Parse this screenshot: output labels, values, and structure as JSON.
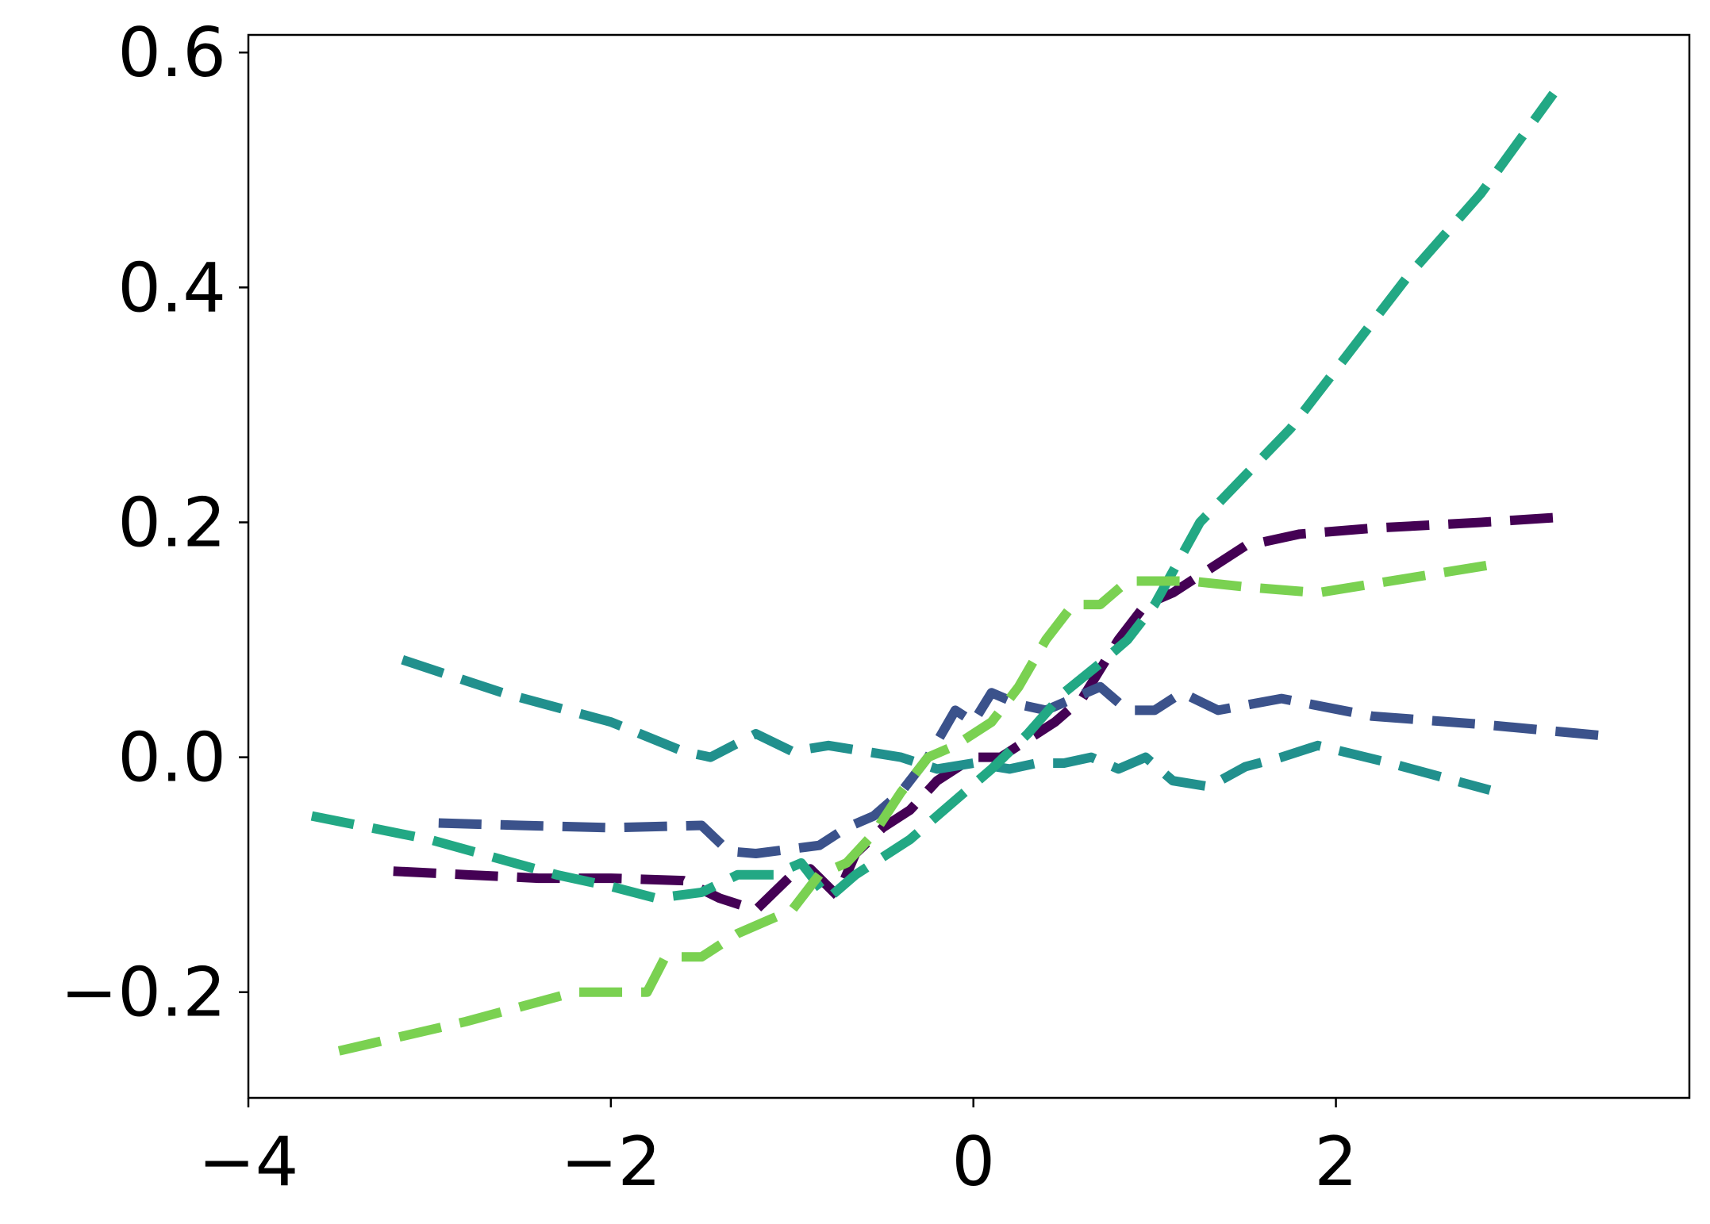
{
  "chart_data": {
    "type": "line",
    "title": "",
    "xlabel": "",
    "ylabel": "",
    "xlim": [
      -4.0,
      3.95
    ],
    "ylim": [
      -0.29,
      0.615
    ],
    "xticks": [
      -4,
      -2,
      0,
      2
    ],
    "xtick_labels": [
      "−4",
      "−2",
      "0",
      "2"
    ],
    "yticks": [
      -0.2,
      0.0,
      0.2,
      0.4,
      0.6
    ],
    "ytick_labels": [
      "−0.2",
      "0.0",
      "0.2",
      "0.4",
      "0.6"
    ],
    "grid": false,
    "legend": "none",
    "line_style": "dashed",
    "series": [
      {
        "color": "#440154",
        "x": [
          -3.2,
          -2.8,
          -2.4,
          -2.0,
          -1.6,
          -1.4,
          -1.2,
          -1.0,
          -0.9,
          -0.75,
          -0.65,
          -0.5,
          -0.35,
          -0.2,
          0.0,
          0.15,
          0.3,
          0.45,
          0.6,
          0.8,
          0.95,
          1.1,
          1.3,
          1.5,
          1.8,
          2.2,
          2.8,
          3.3
        ],
        "y": [
          -0.097,
          -0.1,
          -0.103,
          -0.103,
          -0.105,
          -0.12,
          -0.13,
          -0.1,
          -0.095,
          -0.118,
          -0.082,
          -0.06,
          -0.045,
          -0.02,
          0.0,
          0.0,
          0.015,
          0.03,
          0.05,
          0.1,
          0.13,
          0.14,
          0.16,
          0.18,
          0.19,
          0.195,
          0.2,
          0.205
        ]
      },
      {
        "color": "#3b528b",
        "x": [
          -2.95,
          -2.5,
          -2.0,
          -1.5,
          -1.35,
          -1.2,
          -1.0,
          -0.85,
          -0.7,
          -0.55,
          -0.4,
          -0.25,
          -0.1,
          0.0,
          0.1,
          0.25,
          0.4,
          0.55,
          0.7,
          0.85,
          1.0,
          1.15,
          1.35,
          1.7,
          2.2,
          2.8,
          3.5
        ],
        "y": [
          -0.056,
          -0.058,
          -0.06,
          -0.058,
          -0.08,
          -0.082,
          -0.078,
          -0.075,
          -0.06,
          -0.05,
          -0.03,
          0.0,
          0.04,
          0.03,
          0.055,
          0.045,
          0.04,
          0.05,
          0.06,
          0.04,
          0.04,
          0.055,
          0.04,
          0.05,
          0.035,
          0.028,
          0.018
        ]
      },
      {
        "color": "#21908d",
        "x": [
          -3.15,
          -2.6,
          -2.0,
          -1.6,
          -1.45,
          -1.2,
          -1.0,
          -0.8,
          -0.6,
          -0.4,
          -0.2,
          0.0,
          0.2,
          0.35,
          0.5,
          0.65,
          0.8,
          0.95,
          1.1,
          1.3,
          1.5,
          1.7,
          1.9,
          2.3,
          2.85
        ],
        "y": [
          0.083,
          0.055,
          0.03,
          0.005,
          0.0,
          0.02,
          0.005,
          0.01,
          0.005,
          0.0,
          -0.01,
          -0.005,
          -0.01,
          -0.005,
          -0.005,
          0.0,
          -0.01,
          0.0,
          -0.02,
          -0.025,
          -0.008,
          0.0,
          0.01,
          -0.005,
          -0.028
        ]
      },
      {
        "color": "#22a884",
        "x": [
          -3.65,
          -3.0,
          -2.3,
          -2.0,
          -1.75,
          -1.5,
          -1.3,
          -1.1,
          -0.95,
          -0.8,
          -0.65,
          -0.5,
          -0.35,
          -0.2,
          -0.05,
          0.1,
          0.3,
          0.5,
          0.7,
          0.85,
          1.0,
          1.25,
          1.5,
          1.75,
          2.0,
          2.4,
          2.8,
          3.2
        ],
        "y": [
          -0.05,
          -0.07,
          -0.1,
          -0.11,
          -0.12,
          -0.115,
          -0.1,
          -0.1,
          -0.09,
          -0.12,
          -0.1,
          -0.085,
          -0.07,
          -0.05,
          -0.03,
          -0.01,
          0.02,
          0.055,
          0.08,
          0.1,
          0.13,
          0.2,
          0.24,
          0.28,
          0.33,
          0.41,
          0.48,
          0.565
        ]
      },
      {
        "color": "#7ad151",
        "x": [
          -3.5,
          -2.8,
          -2.2,
          -1.8,
          -1.7,
          -1.5,
          -1.3,
          -1.15,
          -1.0,
          -0.85,
          -0.7,
          -0.55,
          -0.4,
          -0.25,
          -0.1,
          0.1,
          0.25,
          0.4,
          0.55,
          0.7,
          0.85,
          1.0,
          1.2,
          1.5,
          1.9,
          2.3,
          2.9
        ],
        "y": [
          -0.25,
          -0.225,
          -0.2,
          -0.2,
          -0.17,
          -0.17,
          -0.15,
          -0.14,
          -0.13,
          -0.1,
          -0.09,
          -0.065,
          -0.03,
          0.0,
          0.01,
          0.03,
          0.06,
          0.1,
          0.13,
          0.13,
          0.15,
          0.15,
          0.15,
          0.145,
          0.14,
          0.15,
          0.165
        ]
      }
    ]
  }
}
